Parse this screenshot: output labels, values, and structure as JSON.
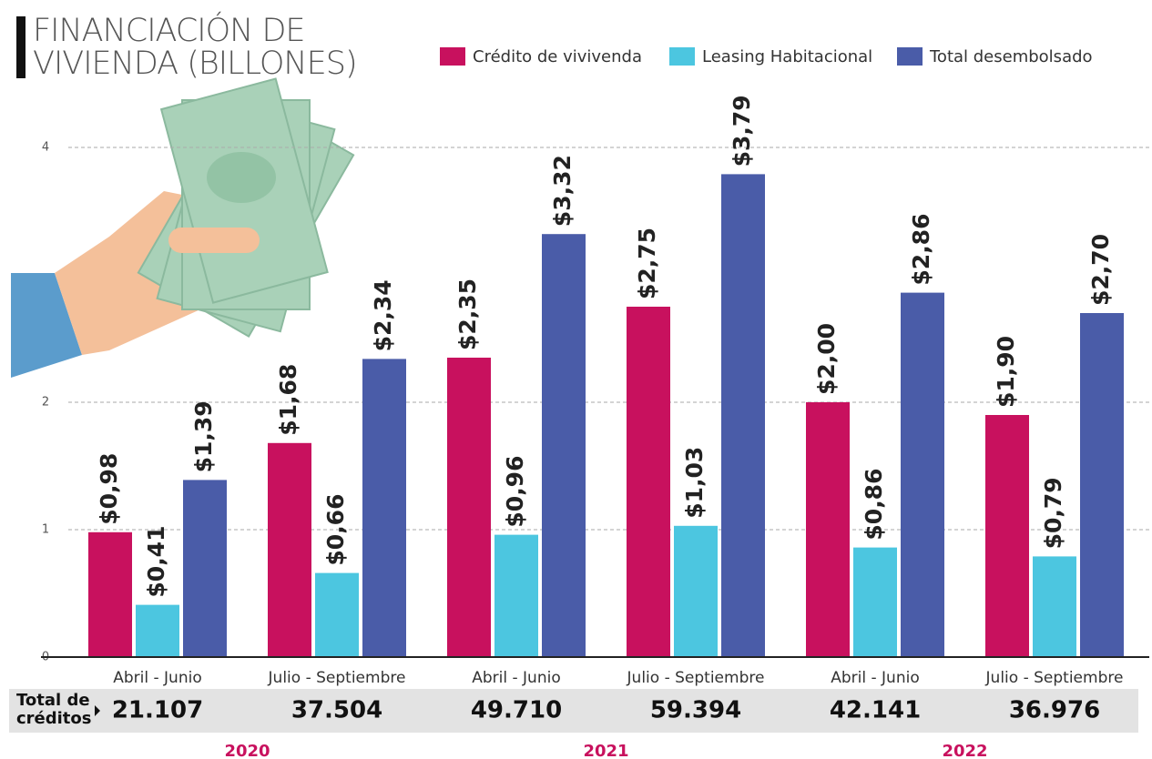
{
  "chart_data": {
    "type": "bar",
    "title": "FINANCIACIÓN DE VIVIENDA (BILLONES)",
    "categories": [
      "Abril - Junio",
      "Julio - Septiembre",
      "Abril - Junio",
      "Julio - Septiembre",
      "Abril - Junio",
      "Julio - Septiembre"
    ],
    "series": [
      {
        "name": "Crédito de vivivenda",
        "color": "#c8115e",
        "values": [
          0.98,
          1.68,
          2.35,
          2.75,
          2.0,
          1.9
        ],
        "value_labels": [
          "$0,98",
          "$1,68",
          "$2,35",
          "$2,75",
          "$2,00",
          "$1,90"
        ]
      },
      {
        "name": "Leasing Habitacional",
        "color": "#4cc6e0",
        "values": [
          0.41,
          0.66,
          0.96,
          1.03,
          0.86,
          0.79
        ],
        "value_labels": [
          "$0,41",
          "$0,66",
          "$0,96",
          "$1,03",
          "$0,86",
          "$0,79"
        ]
      },
      {
        "name": "Total desembolsado",
        "color": "#4a5ca8",
        "values": [
          1.39,
          2.34,
          3.32,
          3.79,
          2.86,
          2.7
        ],
        "value_labels": [
          "$1,39",
          "$2,34",
          "$3,32",
          "$3,79",
          "$2,86",
          "$2,70"
        ]
      }
    ],
    "ylim": [
      0,
      4.2
    ],
    "yticks": [
      0,
      1,
      2,
      4
    ],
    "grid": true,
    "legend": "top-right",
    "totals_label": "Total de créditos",
    "totals": [
      "21.107",
      "37.504",
      "49.710",
      "59.394",
      "42.141",
      "36.976"
    ],
    "years": [
      "2020",
      "2021",
      "2022"
    ]
  }
}
